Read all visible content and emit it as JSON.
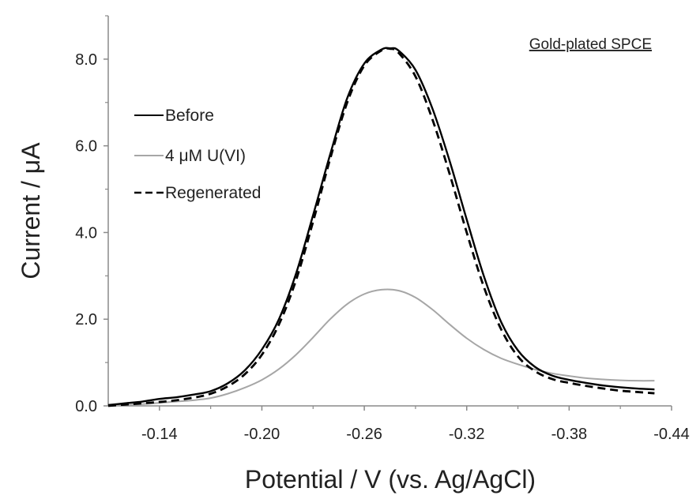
{
  "chart_data": {
    "type": "line",
    "title": "",
    "annotation": "Gold-plated SPCE",
    "xlabel": "Potential / V (vs. Ag/AgCl)",
    "ylabel": "Current / μA",
    "xlim": [
      -0.11,
      -0.44
    ],
    "ylim": [
      0,
      9.0
    ],
    "x_reversed": true,
    "x_ticks": [
      -0.14,
      -0.2,
      -0.26,
      -0.32,
      -0.38,
      -0.44
    ],
    "x_tick_labels": [
      "-0.14",
      "-0.20",
      "-0.26",
      "-0.32",
      "-0.38",
      "-0.44"
    ],
    "y_ticks": [
      0,
      2,
      4,
      6,
      8
    ],
    "y_tick_labels": [
      "0.0",
      "2.0",
      "4.0",
      "6.0",
      "8.0"
    ],
    "grid": false,
    "legend_position": "left",
    "series": [
      {
        "name": "Before",
        "style": "solid",
        "color": "#000000",
        "x": [
          -0.11,
          -0.12,
          -0.13,
          -0.14,
          -0.15,
          -0.16,
          -0.17,
          -0.18,
          -0.19,
          -0.2,
          -0.21,
          -0.22,
          -0.23,
          -0.24,
          -0.25,
          -0.26,
          -0.27,
          -0.275,
          -0.28,
          -0.29,
          -0.3,
          -0.31,
          -0.32,
          -0.33,
          -0.34,
          -0.35,
          -0.36,
          -0.37,
          -0.38,
          -0.39,
          -0.4,
          -0.41,
          -0.42,
          -0.43
        ],
        "y": [
          0.02,
          0.06,
          0.1,
          0.16,
          0.2,
          0.26,
          0.34,
          0.52,
          0.82,
          1.3,
          2.0,
          3.05,
          4.4,
          5.8,
          7.1,
          7.9,
          8.22,
          8.25,
          8.2,
          7.75,
          6.85,
          5.65,
          4.3,
          3.0,
          1.95,
          1.28,
          0.9,
          0.7,
          0.6,
          0.53,
          0.47,
          0.43,
          0.4,
          0.38
        ]
      },
      {
        "name": "4 μM U(VI)",
        "style": "solid",
        "color": "#a6a6a6",
        "x": [
          -0.11,
          -0.12,
          -0.13,
          -0.14,
          -0.15,
          -0.16,
          -0.17,
          -0.18,
          -0.19,
          -0.2,
          -0.21,
          -0.22,
          -0.23,
          -0.24,
          -0.25,
          -0.26,
          -0.27,
          -0.28,
          -0.29,
          -0.3,
          -0.31,
          -0.32,
          -0.33,
          -0.34,
          -0.35,
          -0.36,
          -0.37,
          -0.38,
          -0.39,
          -0.4,
          -0.41,
          -0.42,
          -0.43
        ],
        "y": [
          0.0,
          0.02,
          0.04,
          0.07,
          0.1,
          0.13,
          0.18,
          0.28,
          0.42,
          0.6,
          0.85,
          1.18,
          1.58,
          2.0,
          2.35,
          2.58,
          2.68,
          2.66,
          2.5,
          2.22,
          1.88,
          1.56,
          1.3,
          1.1,
          0.96,
          0.84,
          0.75,
          0.69,
          0.64,
          0.61,
          0.59,
          0.58,
          0.58
        ]
      },
      {
        "name": "Regenerated",
        "style": "dashed",
        "color": "#000000",
        "x": [
          -0.11,
          -0.12,
          -0.13,
          -0.14,
          -0.15,
          -0.16,
          -0.17,
          -0.18,
          -0.19,
          -0.2,
          -0.21,
          -0.22,
          -0.23,
          -0.24,
          -0.25,
          -0.26,
          -0.27,
          -0.275,
          -0.28,
          -0.29,
          -0.3,
          -0.31,
          -0.32,
          -0.33,
          -0.34,
          -0.35,
          -0.36,
          -0.37,
          -0.38,
          -0.39,
          -0.4,
          -0.41,
          -0.42,
          -0.43
        ],
        "y": [
          0.0,
          0.03,
          0.06,
          0.09,
          0.13,
          0.19,
          0.28,
          0.45,
          0.73,
          1.18,
          1.88,
          2.9,
          4.25,
          5.7,
          7.0,
          7.85,
          8.2,
          8.24,
          8.15,
          7.6,
          6.6,
          5.35,
          4.0,
          2.75,
          1.78,
          1.14,
          0.8,
          0.62,
          0.53,
          0.46,
          0.4,
          0.35,
          0.32,
          0.29
        ]
      }
    ]
  }
}
